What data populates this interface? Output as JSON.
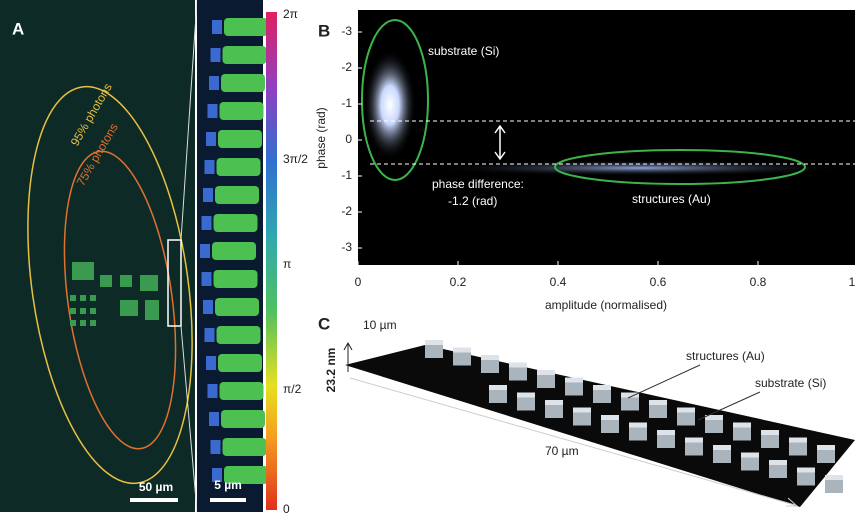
{
  "panel_a": {
    "label": "A",
    "contour_outer": "95% photons",
    "contour_inner": "75% photons",
    "scale_bar": "50 µm",
    "zoom_scale_bar": "5 µm",
    "colorbar_labels": [
      "2π",
      "3π/2",
      "π",
      "π/2",
      "0"
    ]
  },
  "panel_b": {
    "label": "B",
    "y_label": "phase (rad)",
    "x_label": "amplitude (normalised)",
    "y_tick_labels": [
      "-3",
      "-2",
      "-1",
      "0",
      "-1",
      "-2",
      "-3"
    ],
    "x_tick_labels": [
      "0",
      "0.2",
      "0.4",
      "0.6",
      "0.8",
      "1"
    ],
    "annotation_substrate": "substrate (Si)",
    "annotation_phase_1": "phase difference:",
    "annotation_phase_2": "-1.2 (rad)",
    "annotation_structures": "structures (Au)"
  },
  "panel_c": {
    "label": "C",
    "width_label": "10 µm",
    "height_label": "23.2 nm",
    "length_label": "70 µm",
    "annotation_structures": "structures (Au)",
    "annotation_substrate": "substrate (Si)"
  }
}
